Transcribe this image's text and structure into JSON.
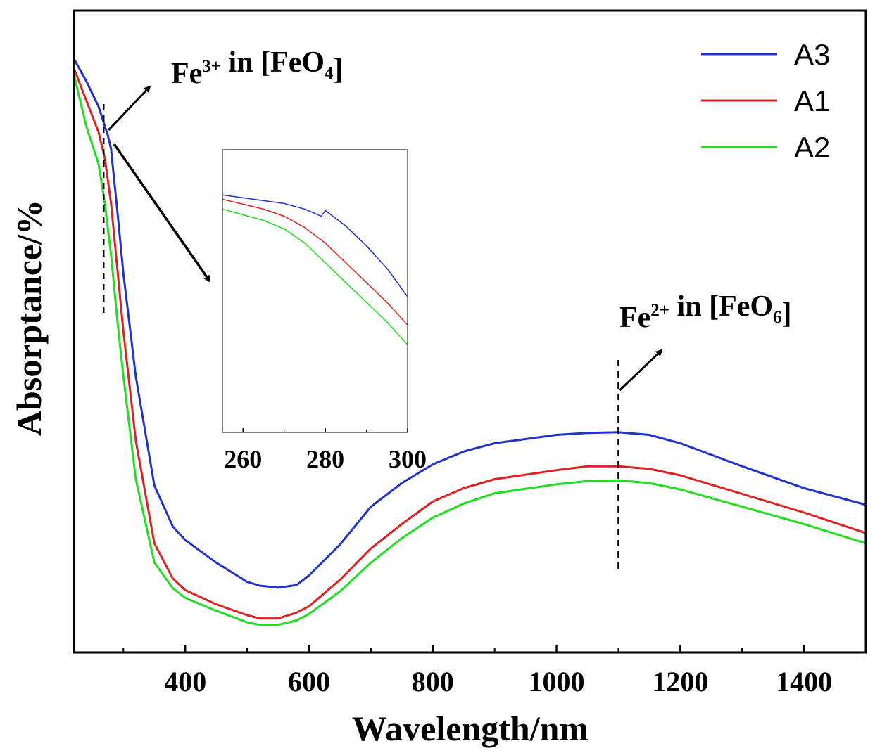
{
  "chart_data": {
    "type": "line",
    "xlabel": "Wavelength/nm",
    "ylabel": "Absorptance/%",
    "xlim": [
      220,
      1500
    ],
    "ylim": [
      0,
      1
    ],
    "y_ticks_labeled": false,
    "x_ticks": [
      "400",
      "600",
      "800",
      "1000",
      "1200",
      "1400"
    ],
    "legend_position": "top-right",
    "series": [
      {
        "name": "A3",
        "color": "#2233cc",
        "x": [
          220,
          240,
          260,
          270,
          275,
          280,
          290,
          300,
          320,
          350,
          380,
          400,
          450,
          500,
          520,
          550,
          580,
          600,
          650,
          700,
          750,
          800,
          850,
          900,
          1000,
          1050,
          1100,
          1150,
          1200,
          1300,
          1400,
          1500
        ],
        "y": [
          0.925,
          0.89,
          0.85,
          0.82,
          0.805,
          0.785,
          0.69,
          0.59,
          0.43,
          0.26,
          0.196,
          0.175,
          0.14,
          0.11,
          0.104,
          0.101,
          0.105,
          0.12,
          0.168,
          0.227,
          0.264,
          0.293,
          0.313,
          0.326,
          0.339,
          0.342,
          0.343,
          0.339,
          0.326,
          0.29,
          0.256,
          0.23
        ]
      },
      {
        "name": "A1",
        "color": "#dd2222",
        "x": [
          220,
          240,
          260,
          270,
          280,
          290,
          300,
          320,
          350,
          380,
          400,
          450,
          500,
          520,
          550,
          580,
          600,
          650,
          700,
          750,
          800,
          850,
          900,
          1000,
          1050,
          1100,
          1150,
          1200,
          1300,
          1400,
          1500
        ],
        "y": [
          0.91,
          0.86,
          0.81,
          0.77,
          0.7,
          0.6,
          0.5,
          0.33,
          0.17,
          0.115,
          0.097,
          0.075,
          0.058,
          0.053,
          0.053,
          0.062,
          0.072,
          0.113,
          0.162,
          0.2,
          0.235,
          0.256,
          0.27,
          0.284,
          0.29,
          0.29,
          0.286,
          0.276,
          0.247,
          0.218,
          0.186
        ]
      },
      {
        "name": "A2",
        "color": "#22dd22",
        "x": [
          220,
          240,
          260,
          270,
          280,
          290,
          300,
          320,
          350,
          380,
          400,
          450,
          500,
          520,
          550,
          580,
          600,
          650,
          700,
          750,
          800,
          850,
          900,
          1000,
          1050,
          1100,
          1150,
          1200,
          1300,
          1400,
          1500
        ],
        "y": [
          0.9,
          0.82,
          0.76,
          0.7,
          0.62,
          0.52,
          0.43,
          0.27,
          0.14,
          0.1,
          0.085,
          0.065,
          0.047,
          0.043,
          0.043,
          0.05,
          0.06,
          0.095,
          0.14,
          0.178,
          0.21,
          0.232,
          0.248,
          0.262,
          0.267,
          0.268,
          0.264,
          0.254,
          0.227,
          0.2,
          0.17
        ]
      }
    ],
    "annotations": [
      {
        "base": "Fe",
        "sup": "3+",
        "rest": " in [FeO",
        "sub": "4",
        "end": "]",
        "x": 268
      },
      {
        "base": "Fe",
        "sup": "2+",
        "rest": " in [FeO",
        "sub": "6",
        "end": "]",
        "x": 1100
      }
    ],
    "inset": {
      "xlim": [
        255,
        300
      ],
      "ylim": [
        0,
        1
      ],
      "x_ticks": [
        "260",
        "280",
        "300"
      ],
      "series": [
        {
          "name": "A3",
          "x": [
            255,
            265,
            270,
            275,
            279,
            280,
            285,
            290,
            295,
            300
          ],
          "y": [
            0.84,
            0.82,
            0.81,
            0.79,
            0.765,
            0.785,
            0.73,
            0.66,
            0.58,
            0.48
          ]
        },
        {
          "name": "A1",
          "x": [
            255,
            265,
            270,
            275,
            280,
            285,
            290,
            295,
            300
          ],
          "y": [
            0.825,
            0.79,
            0.765,
            0.725,
            0.67,
            0.6,
            0.53,
            0.46,
            0.38
          ]
        },
        {
          "name": "A2",
          "x": [
            255,
            265,
            270,
            275,
            280,
            285,
            290,
            295,
            300
          ],
          "y": [
            0.79,
            0.75,
            0.72,
            0.67,
            0.6,
            0.53,
            0.46,
            0.39,
            0.31
          ]
        }
      ]
    }
  }
}
